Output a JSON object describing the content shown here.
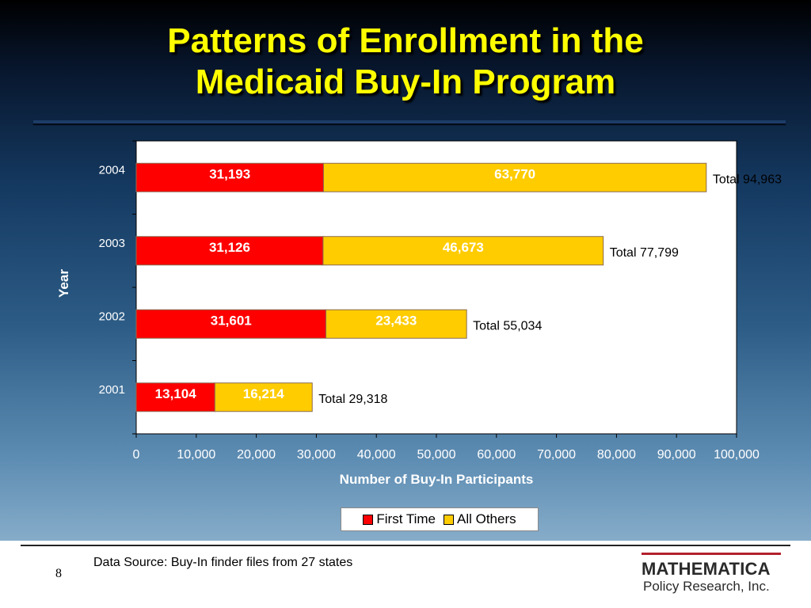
{
  "slide": {
    "title_line1": "Patterns of Enrollment in the",
    "title_line2": "Medicaid Buy-In Program",
    "source": "Data Source: Buy-In finder files from 27 states",
    "page_number": "8",
    "logo_name": "MATHEMATICA",
    "logo_sub": "Policy Research, Inc."
  },
  "chart_data": {
    "type": "bar",
    "orientation": "horizontal",
    "stacked": true,
    "categories": [
      "2001",
      "2002",
      "2003",
      "2004"
    ],
    "series": [
      {
        "name": "First Time",
        "values": [
          13104,
          31601,
          31126,
          31193
        ],
        "color": "#ff0000",
        "labels": [
          "13,104",
          "31,601",
          "31,126",
          "31,193"
        ]
      },
      {
        "name": "All Others",
        "values": [
          16214,
          23433,
          46673,
          63770
        ],
        "color": "#ffcc00",
        "labels": [
          "16,214",
          "23,433",
          "46,673",
          "63,770"
        ]
      }
    ],
    "totals": [
      "Total 29,318",
      "Total 55,034",
      "Total 77,799",
      "Total 94,963"
    ],
    "xlabel": "Number of Buy-In Participants",
    "ylabel": "Year",
    "xlim": [
      0,
      100000
    ],
    "xticks": [
      0,
      10000,
      20000,
      30000,
      40000,
      50000,
      60000,
      70000,
      80000,
      90000,
      100000
    ],
    "xtick_labels": [
      "0",
      "10,000",
      "20,000",
      "30,000",
      "40,000",
      "50,000",
      "60,000",
      "70,000",
      "80,000",
      "90,000",
      "100,000"
    ],
    "grid": false,
    "legend_position": "bottom"
  }
}
